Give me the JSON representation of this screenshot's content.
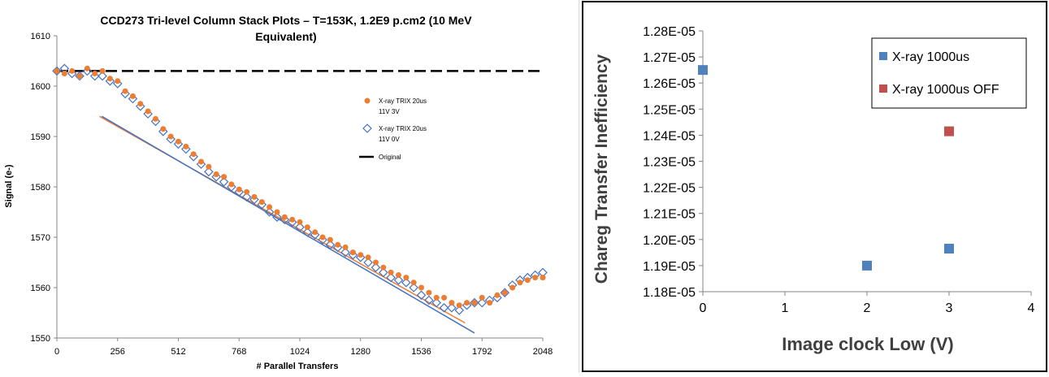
{
  "chart_data": [
    {
      "type": "scatter",
      "title": "CCD273 Tri-level Column Stack Plots – T=153K, 1.2E9 p.cm2 (10 MeV Equivalent)",
      "title_lines": [
        "CCD273 Tri-level Column Stack Plots – T=153K, 1.2E9 p.cm2 (10 MeV",
        "Equivalent)"
      ],
      "xlabel": "# Parallel Transfers",
      "ylabel": "Signal (e-)",
      "xlim": [
        0,
        2048
      ],
      "ylim": [
        1550,
        1610
      ],
      "xticks": [
        0,
        256,
        512,
        768,
        1024,
        1280,
        1536,
        1792,
        2048
      ],
      "yticks": [
        1550,
        1560,
        1570,
        1580,
        1590,
        1600,
        1610
      ],
      "grid": false,
      "legend_position": "right",
      "series": [
        {
          "name": "X-ray TRIX 20us 11V 3V",
          "name_lines": [
            "X-ray TRIX 20us",
            "11V 3V"
          ],
          "marker": "circle",
          "color": "#ED7D31",
          "x": [
            0,
            32,
            64,
            96,
            128,
            160,
            192,
            224,
            256,
            288,
            320,
            352,
            384,
            416,
            448,
            480,
            512,
            544,
            576,
            608,
            640,
            672,
            704,
            736,
            768,
            800,
            832,
            864,
            896,
            928,
            960,
            992,
            1024,
            1056,
            1088,
            1120,
            1152,
            1184,
            1216,
            1248,
            1280,
            1312,
            1344,
            1376,
            1408,
            1440,
            1472,
            1504,
            1536,
            1568,
            1600,
            1632,
            1664,
            1696,
            1728,
            1760,
            1792,
            1824,
            1856,
            1888,
            1920,
            1952,
            1984,
            2016,
            2048
          ],
          "y": [
            1603,
            1602.5,
            1603,
            1602,
            1603.5,
            1602.5,
            1603,
            1601.5,
            1601,
            1599,
            1598,
            1596.5,
            1595,
            1593.5,
            1591.5,
            1590,
            1589,
            1588,
            1586.5,
            1585,
            1584,
            1582.5,
            1582,
            1580.5,
            1579.5,
            1579,
            1578,
            1577,
            1576,
            1575,
            1574,
            1573.5,
            1573,
            1572,
            1571,
            1570,
            1569.5,
            1568.5,
            1568,
            1567,
            1566.5,
            1566,
            1565,
            1564,
            1563,
            1562.5,
            1562,
            1561,
            1560,
            1559,
            1558,
            1558,
            1557,
            1556.5,
            1557,
            1557,
            1558,
            1557,
            1558.5,
            1559,
            1560,
            1561,
            1561.5,
            1562,
            1562
          ]
        },
        {
          "name": "X-ray TRIX 20us 11V 0V",
          "name_lines": [
            "X-ray TRIX 20us",
            "11V 0V"
          ],
          "marker": "diamond-open",
          "color": "#4472C4",
          "x": [
            0,
            32,
            64,
            96,
            128,
            160,
            192,
            224,
            256,
            288,
            320,
            352,
            384,
            416,
            448,
            480,
            512,
            544,
            576,
            608,
            640,
            672,
            704,
            736,
            768,
            800,
            832,
            864,
            896,
            928,
            960,
            992,
            1024,
            1056,
            1088,
            1120,
            1152,
            1184,
            1216,
            1248,
            1280,
            1312,
            1344,
            1376,
            1408,
            1440,
            1472,
            1504,
            1536,
            1568,
            1600,
            1632,
            1664,
            1696,
            1728,
            1760,
            1792,
            1824,
            1856,
            1888,
            1920,
            1952,
            1984,
            2016,
            2048
          ],
          "y": [
            1603,
            1603.5,
            1602.5,
            1602,
            1603,
            1602,
            1602,
            1601,
            1600.5,
            1598.5,
            1597.5,
            1596,
            1594.5,
            1593,
            1591,
            1589.5,
            1588.5,
            1587.5,
            1586,
            1584.5,
            1583,
            1582,
            1581,
            1580,
            1579,
            1578,
            1577.5,
            1576.5,
            1575,
            1574,
            1573.5,
            1573,
            1572,
            1571,
            1570.5,
            1569.5,
            1568.5,
            1568,
            1567,
            1566.5,
            1566,
            1565,
            1564,
            1563,
            1562,
            1561.5,
            1561,
            1560,
            1558.5,
            1557.5,
            1557,
            1556,
            1556,
            1555.5,
            1556.5,
            1557,
            1557,
            1557.5,
            1558,
            1559,
            1560.5,
            1561.5,
            1562,
            1562.5,
            1563
          ]
        },
        {
          "name": "Original",
          "marker": "dashed-line",
          "color": "#000000",
          "x": [
            0,
            2048
          ],
          "y": [
            1603,
            1603
          ]
        }
      ],
      "trendlines": [
        {
          "color": "#ED7D31",
          "x": [
            180,
            1720
          ],
          "y": [
            1594,
            1553
          ]
        },
        {
          "color": "#4472C4",
          "x": [
            190,
            1760
          ],
          "y": [
            1594,
            1551
          ]
        }
      ]
    },
    {
      "type": "scatter",
      "title": "",
      "xlabel": "Image clock Low (V)",
      "ylabel": "Chareg Transfer Inefficiency",
      "xlim": [
        0,
        4
      ],
      "ylim": [
        1.18e-05,
        1.28e-05
      ],
      "xticks": [
        "0",
        "1",
        "2",
        "3",
        "4"
      ],
      "yticks": [
        "1.18E-05",
        "1.19E-05",
        "1.20E-05",
        "1.21E-05",
        "1.22E-05",
        "1.23E-05",
        "1.24E-05",
        "1.25E-05",
        "1.26E-05",
        "1.27E-05",
        "1.28E-05"
      ],
      "grid": false,
      "legend_position": "top-right",
      "series": [
        {
          "name": "X-ray 1000us",
          "marker": "square",
          "color": "#4F81BD",
          "x": [
            0,
            2,
            3
          ],
          "y": [
            1.265e-05,
            1.19e-05,
            1.1965e-05
          ]
        },
        {
          "name": "X-ray 1000us OFF",
          "marker": "square",
          "color": "#C0504D",
          "x": [
            3
          ],
          "y": [
            1.2415e-05
          ]
        }
      ]
    }
  ]
}
